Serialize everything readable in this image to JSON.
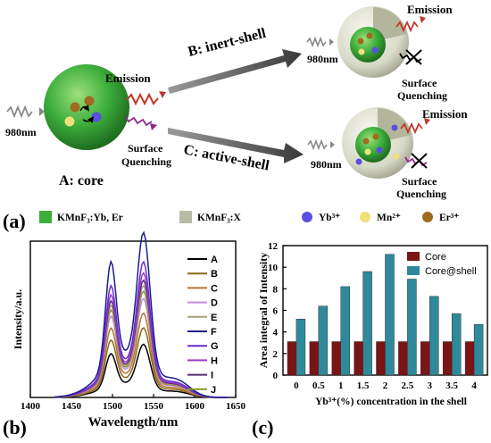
{
  "schematic": {
    "core_label": "A: core",
    "inert_label": "B:  inert-shell",
    "active_label": "C: active-shell",
    "excitation": "980nm",
    "emission": "Emission",
    "quenching_line1": "Surface",
    "quenching_line2": "Quenching",
    "panel": "(a)"
  },
  "legend": {
    "items": [
      {
        "text": "KMnF₃:Yb, Er",
        "color": "#3cae3c",
        "shape": "square"
      },
      {
        "text": "KMnF₃:X",
        "color": "#b8bca4",
        "shape": "square"
      },
      {
        "text": "Yb³⁺",
        "color": "#5a4fe0",
        "shape": "circle"
      },
      {
        "text": "Mn²⁺",
        "color": "#eee07a",
        "shape": "circle"
      },
      {
        "text": "Er³⁺",
        "color": "#a06a20",
        "shape": "circle"
      }
    ]
  },
  "colors": {
    "core_green": "#3cae3c",
    "shell_gray": "#d8dac8",
    "emission": "#c0392b",
    "quench": "#8e2a8e",
    "excite": "#888888",
    "arrow": "#555555"
  },
  "chart_data": [
    {
      "panel": "(b)",
      "type": "line",
      "xlabel": "Wavelength/nm",
      "ylabel": "Intensity/a.u.",
      "xlim": [
        1400,
        1650
      ],
      "xticks": [
        "1400",
        "1450",
        "1500",
        "1550",
        "1600",
        "1650"
      ],
      "grid": false,
      "legend_position": "right",
      "peaks": [
        1498,
        1538
      ],
      "series": [
        {
          "name": "A",
          "color": "#000000",
          "scale": 0.29
        },
        {
          "name": "B",
          "color": "#8B6914",
          "scale": 0.38
        },
        {
          "name": "C",
          "color": "#B8732E",
          "scale": 0.46
        },
        {
          "name": "D",
          "color": "#C58AE0",
          "scale": 0.54
        },
        {
          "name": "E",
          "color": "#A9A07C",
          "scale": 0.61
        },
        {
          "name": "F",
          "color": "#1C1C8C",
          "scale": 0.9
        },
        {
          "name": "G",
          "color": "#6A2BD6",
          "scale": 0.74
        },
        {
          "name": "H",
          "color": "#A03CC8",
          "scale": 0.68
        },
        {
          "name": "I",
          "color": "#5A2A78",
          "scale": 0.64
        },
        {
          "name": "J",
          "color": "#8A9A28",
          "scale": 0.58
        }
      ]
    },
    {
      "panel": "(c)",
      "type": "bar",
      "xlabel": "Yb³⁺(%) concentration in the shell",
      "ylabel": "Area integral of Intensity",
      "ylim": [
        0,
        12
      ],
      "yticks": [
        "0",
        "2",
        "4",
        "6",
        "8",
        "10",
        "12"
      ],
      "categories": [
        "0",
        "0.5",
        "1",
        "1.5",
        "2",
        "2.5",
        "3",
        "3.5",
        "4"
      ],
      "legend_position": "top-right",
      "series": [
        {
          "name": "Core",
          "color": "#7b1414",
          "values": [
            3.1,
            3.1,
            3.1,
            3.1,
            3.1,
            3.1,
            3.1,
            3.1,
            3.1
          ]
        },
        {
          "name": "Core@shell",
          "color": "#2e8a9a",
          "values": [
            5.2,
            6.4,
            8.2,
            9.6,
            11.2,
            8.9,
            7.3,
            5.7,
            4.7
          ]
        }
      ]
    }
  ]
}
